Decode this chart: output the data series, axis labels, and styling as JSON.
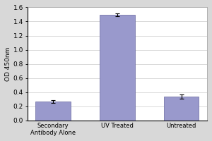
{
  "categories": [
    "Secondary\nAntibody Alone",
    "UV Treated",
    "Untreated"
  ],
  "values": [
    0.27,
    1.49,
    0.34
  ],
  "errors": [
    0.02,
    0.02,
    0.03
  ],
  "bar_color": "#9999cc",
  "bar_edgecolor": "#7777aa",
  "ylabel": "OD 450nm",
  "ylim": [
    0.0,
    1.6
  ],
  "yticks": [
    0.0,
    0.2,
    0.4,
    0.6,
    0.8,
    1.0,
    1.2,
    1.4,
    1.6
  ],
  "figure_facecolor": "#d8d8d8",
  "plot_facecolor": "#ffffff",
  "bar_width": 0.55,
  "capsize": 2,
  "figsize": [
    3.0,
    2.0
  ],
  "dpi": 100
}
